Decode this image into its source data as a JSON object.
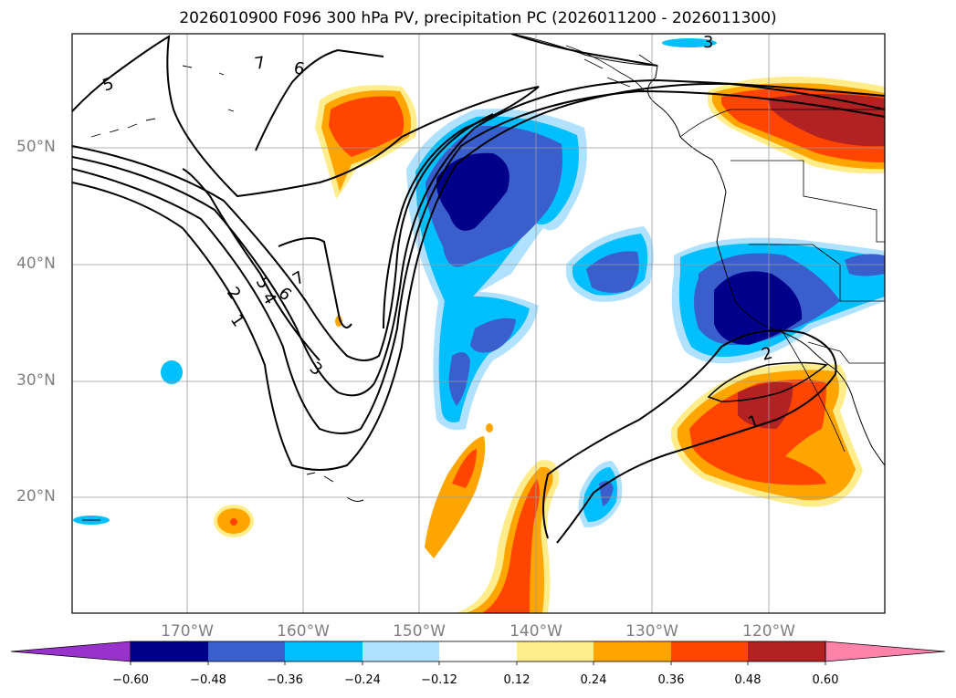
{
  "title": "2026010900 F096 300 hPa PV, precipitation PC (2026011200 - 2026011300)",
  "lat_labels": [
    "50°N",
    "40°N",
    "30°N",
    "20°N"
  ],
  "lon_labels": [
    "170°W",
    "160°W",
    "150°W",
    "140°W",
    "130°W",
    "120°W"
  ],
  "contour_labels": [
    "5",
    "7",
    "6",
    "5",
    "4",
    "6",
    "7",
    "2",
    "1",
    "3",
    "2",
    "1",
    "3"
  ],
  "colorbar": {
    "ticks": [
      "−0.60",
      "−0.48",
      "−0.36",
      "−0.24",
      "−0.12",
      "0.12",
      "0.24",
      "0.36",
      "0.48",
      "0.60"
    ],
    "colors": [
      "#9932cc",
      "#00008b",
      "#3a5fcd",
      "#00bfff",
      "#b0e2ff",
      "#ffffff",
      "#ffec8b",
      "#ffa500",
      "#ff4500",
      "#b22222",
      "#ff82ab"
    ]
  },
  "palette": {
    "land": "#000000",
    "contour": "#000000",
    "grid": "#9a9a9a",
    "axis_label": "#7f7f7f"
  }
}
